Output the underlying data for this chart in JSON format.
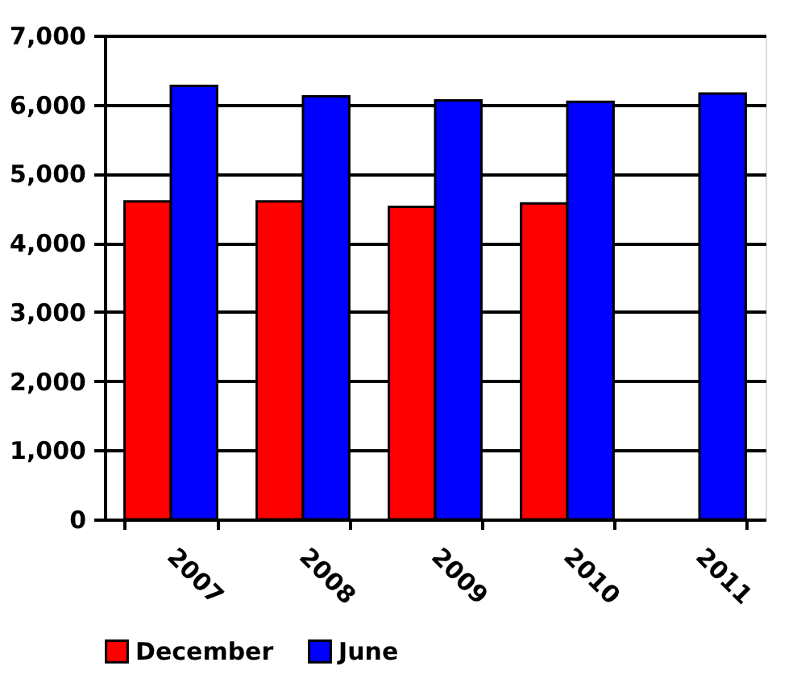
{
  "chart_data": {
    "type": "bar",
    "categories": [
      "2007",
      "2008",
      "2009",
      "2010",
      "2011"
    ],
    "series": [
      {
        "name": "December",
        "color": "#ff0000",
        "values": [
          4600,
          4600,
          4520,
          4570,
          null
        ]
      },
      {
        "name": "June",
        "color": "#0000ff",
        "values": [
          6270,
          6120,
          6060,
          6040,
          6160
        ]
      }
    ],
    "ylim": [
      0,
      7000
    ],
    "yticks": [
      {
        "value": 0,
        "label": "0"
      },
      {
        "value": 1000,
        "label": "1,000"
      },
      {
        "value": 2000,
        "label": "2,000"
      },
      {
        "value": 3000,
        "label": "3,000"
      },
      {
        "value": 4000,
        "label": "4,000"
      },
      {
        "value": 5000,
        "label": "5,000"
      },
      {
        "value": 6000,
        "label": "6,000"
      },
      {
        "value": 7000,
        "label": "7,000"
      }
    ],
    "grid": "y",
    "legend": "bottom"
  }
}
